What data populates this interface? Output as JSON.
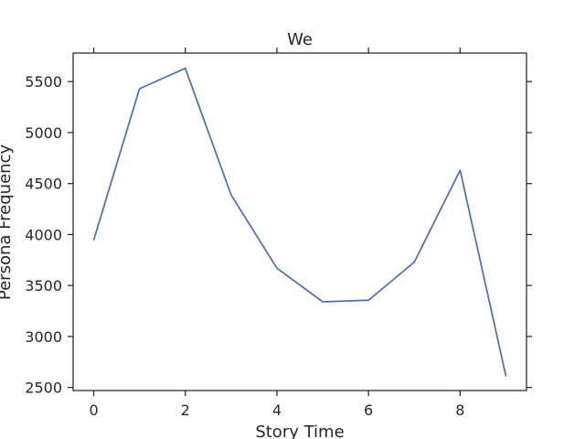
{
  "chart_data": {
    "type": "line",
    "title": "We",
    "xlabel": "Story Time",
    "ylabel": "Persona Frequency",
    "x": [
      0,
      1,
      2,
      3,
      4,
      5,
      6,
      7,
      8,
      9
    ],
    "series": [
      {
        "values": [
          3945,
          5430,
          5630,
          4390,
          3670,
          3340,
          3355,
          3730,
          4630,
          2610
        ],
        "color": "#4c72b0"
      }
    ],
    "xlim": [
      -0.45,
      9.45
    ],
    "ylim": [
      2470,
      5780
    ],
    "xticks": [
      0,
      2,
      4,
      6,
      8
    ],
    "yticks": [
      2500,
      3000,
      3500,
      4000,
      4500,
      5000,
      5500
    ],
    "grid": false,
    "ticks_on_all_sides": true
  }
}
